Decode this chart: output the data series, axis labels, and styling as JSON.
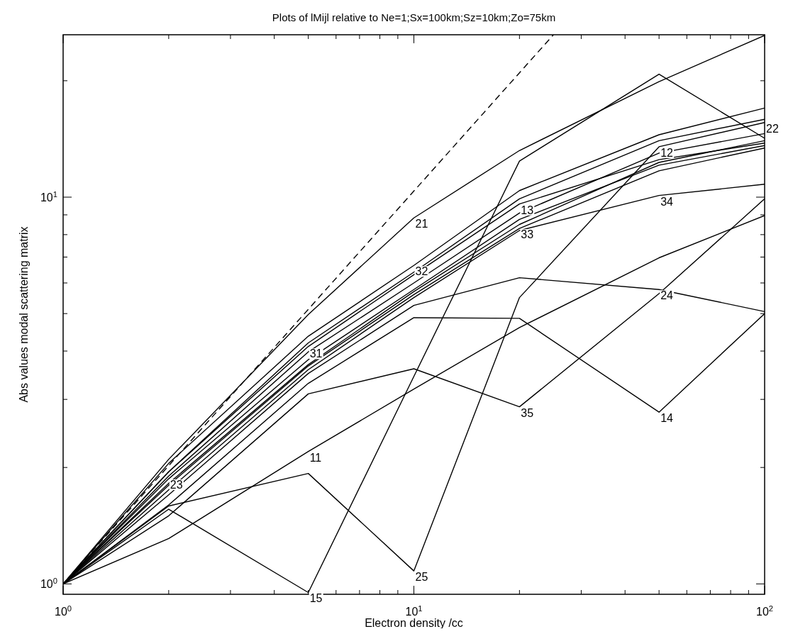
{
  "chart_data": {
    "type": "line",
    "title": "Plots of lMijl relative to Ne=1;Sx=100km;Sz=10km;Zo=75km",
    "xlabel": "Electron density /cc",
    "ylabel": "Abs values modal scattering matrix",
    "log": "xy",
    "grid": false,
    "marker": "none",
    "line_style": "solid",
    "x": [
      1,
      2,
      5,
      10,
      20,
      50,
      100
    ],
    "xlim": [
      1,
      100
    ],
    "ylim": [
      0.94,
      26.3
    ],
    "xticks": [
      {
        "value": 1,
        "label": "10$^{0}$"
      },
      {
        "value": 2,
        "label": null
      },
      {
        "value": 3,
        "label": null
      },
      {
        "value": 4,
        "label": null
      },
      {
        "value": 5,
        "label": null
      },
      {
        "value": 6,
        "label": null
      },
      {
        "value": 7,
        "label": null
      },
      {
        "value": 8,
        "label": null
      },
      {
        "value": 9,
        "label": null
      },
      {
        "value": 10,
        "label": "10$^{1}$"
      },
      {
        "value": 20,
        "label": null
      },
      {
        "value": 30,
        "label": null
      },
      {
        "value": 40,
        "label": null
      },
      {
        "value": 50,
        "label": null
      },
      {
        "value": 60,
        "label": null
      },
      {
        "value": 70,
        "label": null
      },
      {
        "value": 80,
        "label": null
      },
      {
        "value": 90,
        "label": null
      },
      {
        "value": 100,
        "label": "10$^{2}$"
      }
    ],
    "yticks": [
      {
        "value": 1,
        "label": "10$^{0}$"
      },
      {
        "value": 2,
        "label": null
      },
      {
        "value": 3,
        "label": null
      },
      {
        "value": 4,
        "label": null
      },
      {
        "value": 5,
        "label": null
      },
      {
        "value": 6,
        "label": null
      },
      {
        "value": 7,
        "label": null
      },
      {
        "value": 8,
        "label": null
      },
      {
        "value": 9,
        "label": null
      },
      {
        "value": 10,
        "label": "10$^{1}$"
      },
      {
        "value": 20,
        "label": null
      }
    ],
    "series": [
      {
        "color": "#000000",
        "values": [
          1,
          2.1,
          4.97,
          8.84,
          13.2,
          19.9,
          26.2
        ]
      },
      {
        "color": "#000000",
        "values": [
          1,
          1.56,
          0.95,
          3.44,
          12.4,
          20.8,
          14.2
        ]
      },
      {
        "color": "#000000",
        "values": [
          1,
          1.59,
          1.93,
          1.08,
          5.5,
          13.5,
          15.6
        ]
      },
      {
        "color": "#000000",
        "values": [
          1,
          2.05,
          4.37,
          6.66,
          10.4,
          14.5,
          17.0
        ]
      },
      {
        "color": "#000000",
        "values": [
          1,
          1.95,
          4.11,
          6.3,
          9.6,
          12.5,
          13.8
        ]
      },
      {
        "color": "#000000",
        "values": [
          1,
          1.9,
          3.98,
          6.0,
          9.1,
          13.0,
          14.6
        ]
      },
      {
        "color": "#000000",
        "values": [
          1,
          1.87,
          3.8,
          5.77,
          8.76,
          12.1,
          13.6
        ]
      },
      {
        "color": "#000000",
        "values": [
          1,
          1.8,
          3.66,
          5.6,
          8.3,
          11.7,
          13.4
        ]
      },
      {
        "color": "#000000",
        "values": [
          1,
          1.75,
          3.58,
          5.5,
          8.2,
          10.1,
          10.8
        ]
      },
      {
        "color": "#000000",
        "values": [
          1,
          1.82,
          3.69,
          5.7,
          8.5,
          12.3,
          14.0
        ]
      },
      {
        "color": "#000000",
        "values": [
          1,
          1.7,
          3.5,
          5.25,
          6.19,
          5.77,
          5.06
        ]
      },
      {
        "color": "#000000",
        "values": [
          1,
          1.6,
          3.3,
          4.88,
          4.86,
          2.78,
          5.0
        ]
      },
      {
        "color": "#000000",
        "values": [
          1,
          1.5,
          3.1,
          3.6,
          2.87,
          5.63,
          9.9
        ]
      },
      {
        "color": "#000000",
        "values": [
          1,
          1.31,
          2.2,
          3.19,
          4.6,
          6.97,
          8.96
        ]
      },
      {
        "color": "#000000",
        "values": [
          1,
          1.95,
          4.2,
          6.4,
          9.9,
          14.0,
          15.9
        ]
      },
      {
        "color": "#000000",
        "line_style": "dashed",
        "x": [
          1,
          25
        ],
        "values": [
          1,
          26.3
        ]
      }
    ],
    "annotations": [
      {
        "text": "11",
        "x": 5,
        "y": 2.2
      },
      {
        "text": "21",
        "x": 10,
        "y": 8.84
      },
      {
        "text": "31",
        "x": 5,
        "y": 4.08
      },
      {
        "text": "32",
        "x": 10,
        "y": 6.66
      },
      {
        "text": "13",
        "x": 20,
        "y": 9.6
      },
      {
        "text": "33",
        "x": 20,
        "y": 8.3
      },
      {
        "text": "23",
        "x": 2,
        "y": 1.87
      },
      {
        "text": "12",
        "x": 50,
        "y": 13.5
      },
      {
        "text": "22",
        "x": 100,
        "y": 15.6
      },
      {
        "text": "34",
        "x": 50,
        "y": 10.1
      },
      {
        "text": "24",
        "x": 50,
        "y": 5.77
      },
      {
        "text": "14",
        "x": 50,
        "y": 2.78
      },
      {
        "text": "35",
        "x": 20,
        "y": 2.87
      },
      {
        "text": "25",
        "x": 10,
        "y": 1.08
      },
      {
        "text": "15",
        "x": 5,
        "y": 0.95
      }
    ]
  }
}
